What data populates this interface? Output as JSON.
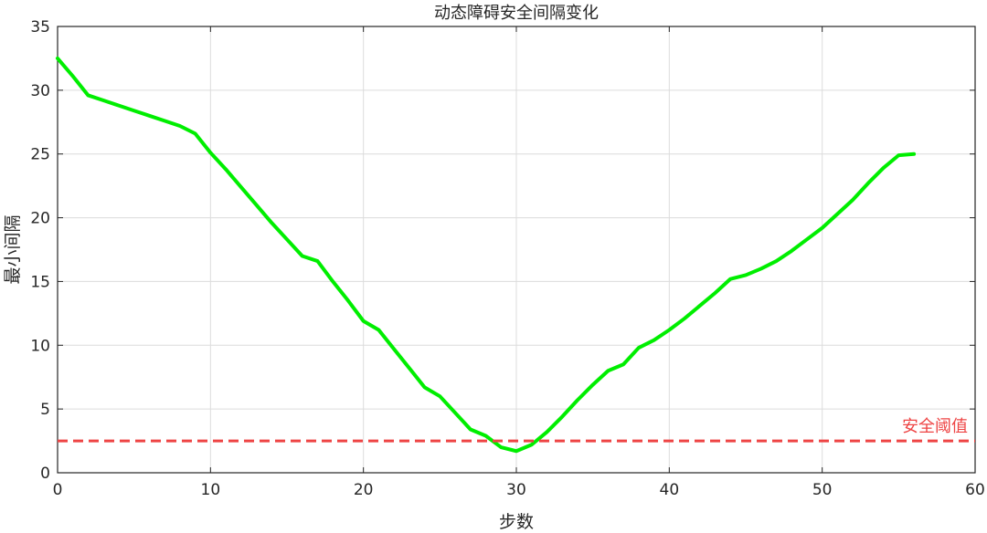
{
  "chart_data": {
    "type": "line",
    "title": "动态障碍安全间隔变化",
    "xlabel": "步数",
    "ylabel": "最小间隔",
    "xlim": [
      0,
      60
    ],
    "ylim": [
      0,
      35
    ],
    "xticks": [
      0,
      10,
      20,
      30,
      40,
      50,
      60
    ],
    "yticks": [
      0,
      5,
      10,
      15,
      20,
      25,
      30,
      35
    ],
    "grid": true,
    "series": [
      {
        "color": "#00ee00",
        "x": [
          0,
          1,
          2,
          3,
          4,
          5,
          6,
          7,
          8,
          9,
          10,
          11,
          12,
          13,
          14,
          15,
          16,
          17,
          18,
          19,
          20,
          21,
          22,
          23,
          24,
          25,
          26,
          27,
          28,
          29,
          30,
          31,
          32,
          33,
          34,
          35,
          36,
          37,
          38,
          39,
          40,
          41,
          42,
          43,
          44,
          45,
          46,
          47,
          48,
          49,
          50,
          51,
          52,
          53,
          54,
          55,
          56
        ],
        "values": [
          32.5,
          31.1,
          29.6,
          29.2,
          28.8,
          28.4,
          28.0,
          27.6,
          27.2,
          26.6,
          25.1,
          23.8,
          22.4,
          21.0,
          19.6,
          18.3,
          17.0,
          16.6,
          15.0,
          13.5,
          11.9,
          11.2,
          9.7,
          8.2,
          6.7,
          6.0,
          4.7,
          3.4,
          2.9,
          2.0,
          1.7,
          2.2,
          3.2,
          4.4,
          5.7,
          6.9,
          8.0,
          8.5,
          9.8,
          10.4,
          11.2,
          12.1,
          13.1,
          14.1,
          15.2,
          15.5,
          16.0,
          16.6,
          17.4,
          18.3,
          19.2,
          20.3,
          21.4,
          22.7,
          23.9,
          24.9,
          25.0
        ]
      }
    ],
    "threshold": {
      "value": 2.5,
      "label": "安全阈值",
      "color": "#ee4444"
    }
  }
}
